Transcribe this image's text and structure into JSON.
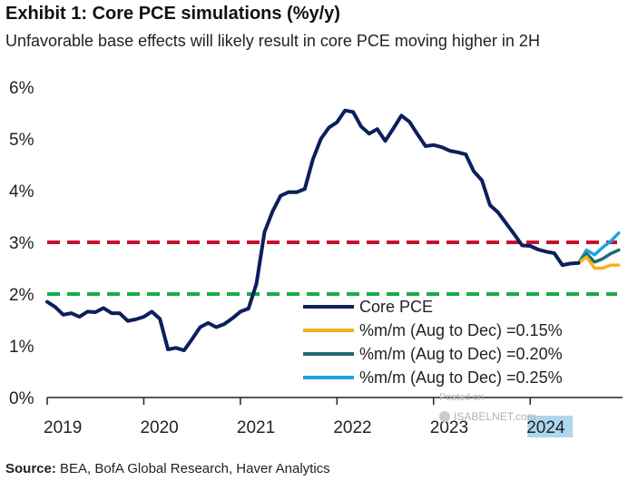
{
  "header": {
    "title": "Exhibit 1: Core PCE simulations (%y/y)",
    "subtitle": "Unfavorable base effects will likely result in core PCE moving higher in 2H"
  },
  "footer": {
    "source_label": "Source:",
    "source_text": "BEA, BofA Global Research, Haver Analytics"
  },
  "watermark": {
    "line1": "Posted on",
    "line2": "ISABELNET.com"
  },
  "colors": {
    "core_pce": "#0c1f5c",
    "sim_015": "#f2b318",
    "sim_020": "#1e6b72",
    "sim_025": "#1ea3e0",
    "ref_3pct": "#c8102e",
    "ref_2pct": "#1aab4b",
    "highlight": "#aed7ef"
  },
  "chart_data": {
    "type": "line",
    "title": "Exhibit 1: Core PCE simulations (%y/y)",
    "ylim": [
      0,
      6
    ],
    "y_ticks": [
      "0%",
      "1%",
      "2%",
      "3%",
      "4%",
      "5%",
      "6%"
    ],
    "xlim": [
      2019.0,
      2024.9
    ],
    "x_ticks": [
      "2019",
      "2020",
      "2021",
      "2022",
      "2023",
      "2024"
    ],
    "highlighted_x_tick": "2024",
    "grid": false,
    "legend_position": "bottom-right",
    "reference_lines": [
      {
        "value": 3,
        "style": "dashed",
        "color": "#c8102e"
      },
      {
        "value": 2,
        "style": "dashed",
        "color": "#1aab4b"
      }
    ],
    "series": [
      {
        "name": "Core PCE",
        "color": "#0c1f5c",
        "x": [
          "2019-01",
          "2019-02",
          "2019-03",
          "2019-04",
          "2019-05",
          "2019-06",
          "2019-07",
          "2019-08",
          "2019-09",
          "2019-10",
          "2019-11",
          "2019-12",
          "2020-01",
          "2020-02",
          "2020-03",
          "2020-04",
          "2020-05",
          "2020-06",
          "2020-07",
          "2020-08",
          "2020-09",
          "2020-10",
          "2020-11",
          "2020-12",
          "2021-01",
          "2021-02",
          "2021-03",
          "2021-04",
          "2021-05",
          "2021-06",
          "2021-07",
          "2021-08",
          "2021-09",
          "2021-10",
          "2021-11",
          "2021-12",
          "2022-01",
          "2022-02",
          "2022-03",
          "2022-04",
          "2022-05",
          "2022-06",
          "2022-07",
          "2022-08",
          "2022-09",
          "2022-10",
          "2022-11",
          "2022-12",
          "2023-01",
          "2023-02",
          "2023-03",
          "2023-04",
          "2023-05",
          "2023-06",
          "2023-07",
          "2023-08",
          "2023-09",
          "2023-10",
          "2023-11",
          "2023-12",
          "2024-01",
          "2024-02",
          "2024-03",
          "2024-04",
          "2024-05",
          "2024-06",
          "2024-07"
        ],
        "values": [
          1.85,
          1.75,
          1.6,
          1.63,
          1.56,
          1.66,
          1.65,
          1.73,
          1.63,
          1.63,
          1.48,
          1.51,
          1.56,
          1.66,
          1.52,
          0.93,
          0.96,
          0.91,
          1.13,
          1.36,
          1.44,
          1.36,
          1.42,
          1.53,
          1.66,
          1.72,
          2.2,
          3.2,
          3.6,
          3.9,
          3.97,
          3.97,
          4.03,
          4.6,
          5.0,
          5.22,
          5.32,
          5.55,
          5.52,
          5.24,
          5.1,
          5.19,
          4.96,
          5.2,
          5.45,
          5.33,
          5.09,
          4.86,
          4.88,
          4.84,
          4.77,
          4.74,
          4.7,
          4.37,
          4.2,
          3.72,
          3.58,
          3.37,
          3.16,
          2.94,
          2.93,
          2.86,
          2.82,
          2.79,
          2.56,
          2.59,
          2.6
        ]
      },
      {
        "name": "%m/m (Aug to Dec) =0.15%",
        "color": "#f2b318",
        "x": [
          "2024-07",
          "2024-08",
          "2024-09",
          "2024-10",
          "2024-11",
          "2024-12"
        ],
        "values": [
          2.6,
          2.72,
          2.5,
          2.5,
          2.56,
          2.56
        ]
      },
      {
        "name": "%m/m (Aug to Dec) =0.20%",
        "color": "#1e6b72",
        "x": [
          "2024-07",
          "2024-08",
          "2024-09",
          "2024-10",
          "2024-11",
          "2024-12"
        ],
        "values": [
          2.6,
          2.78,
          2.62,
          2.68,
          2.78,
          2.85
        ]
      },
      {
        "name": "%m/m (Aug to Dec) =0.25%",
        "color": "#1ea3e0",
        "x": [
          "2024-07",
          "2024-08",
          "2024-09",
          "2024-10",
          "2024-11",
          "2024-12"
        ],
        "values": [
          2.6,
          2.85,
          2.76,
          2.9,
          3.02,
          3.18
        ]
      }
    ]
  }
}
